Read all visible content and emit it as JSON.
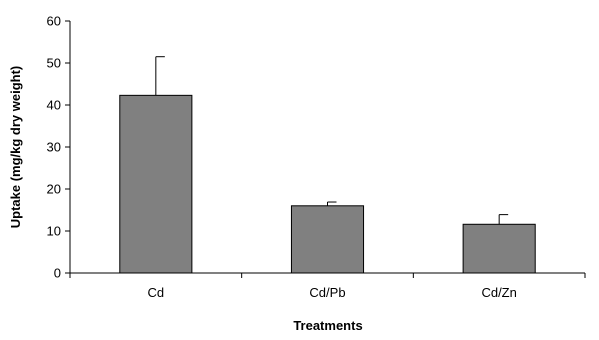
{
  "chart_data": {
    "type": "bar",
    "title": "",
    "xlabel": "Treatments",
    "ylabel": "Uptake (mg/kg dry weight)",
    "categories": [
      "Cd",
      "Cd/Pb",
      "Cd/Zn"
    ],
    "values": [
      42.3,
      16.0,
      11.6
    ],
    "error_bars": [
      9.2,
      0.9,
      2.3
    ],
    "ylim": [
      0,
      60
    ],
    "yticks": [
      0,
      10,
      20,
      30,
      40,
      50,
      60
    ],
    "grid": false,
    "legend": "none",
    "bar_color": "#808080",
    "bar_edge_color": "#000000"
  }
}
